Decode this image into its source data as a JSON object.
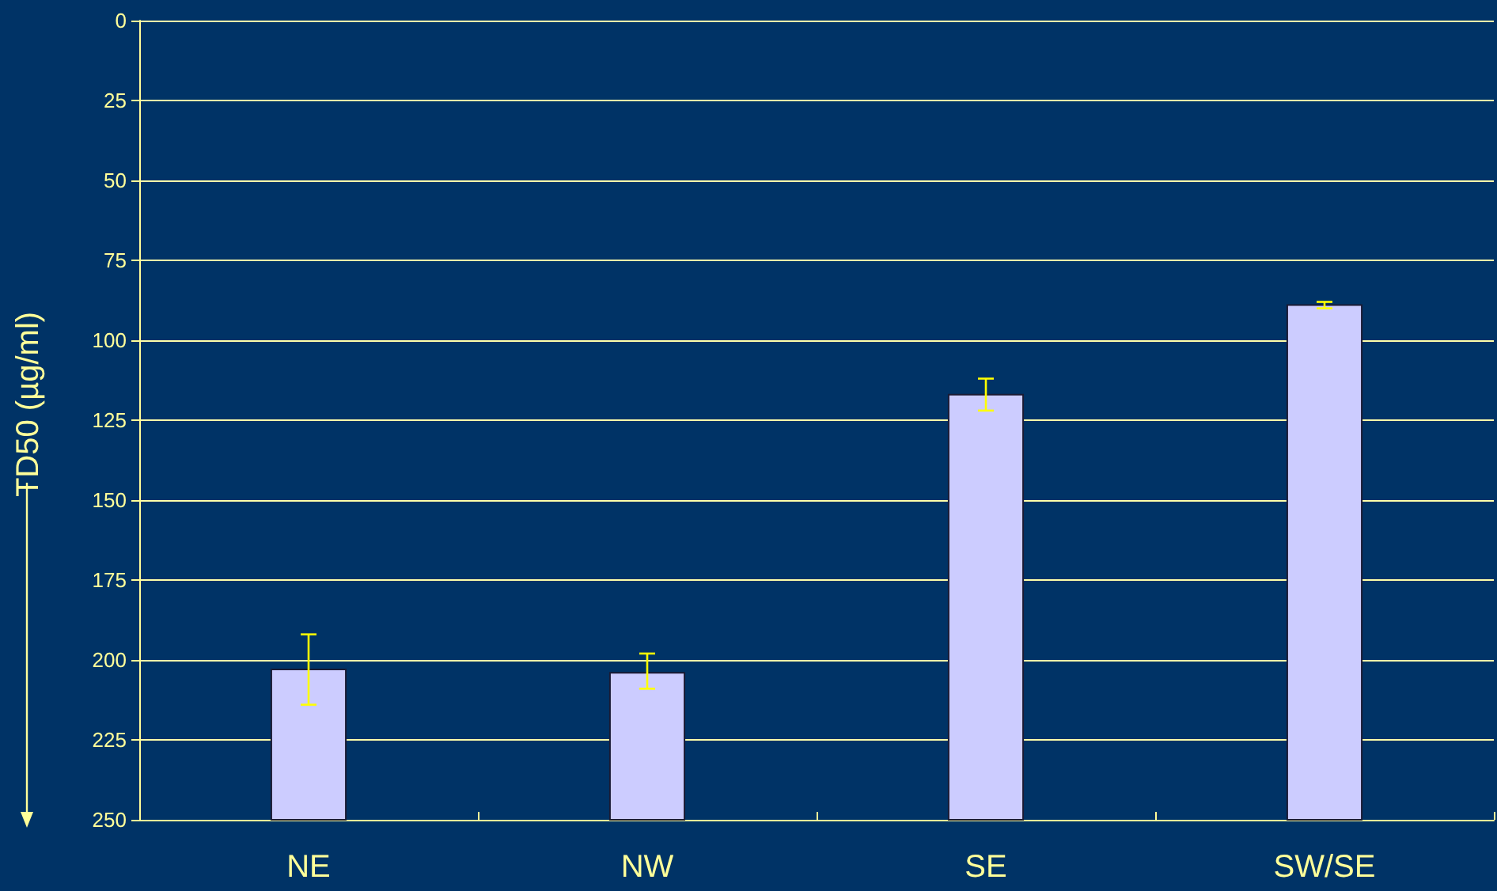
{
  "chart_data": {
    "type": "bar",
    "ylabel": "TD50 (µg/ml)",
    "categories": [
      "NE",
      "NW",
      "SE",
      "SW/SE"
    ],
    "base": [
      250,
      250,
      250,
      250
    ],
    "values": [
      -47,
      -46,
      -133,
      -161
    ],
    "color": "#ccccff",
    "errors": [
      [
        192,
        214
      ],
      [
        198,
        209
      ],
      5,
      1
    ],
    "ylim": [
      250,
      0
    ],
    "yticks": [
      0,
      25,
      50,
      75,
      100,
      125,
      150,
      175,
      200,
      225,
      250
    ],
    "grid": "y"
  }
}
